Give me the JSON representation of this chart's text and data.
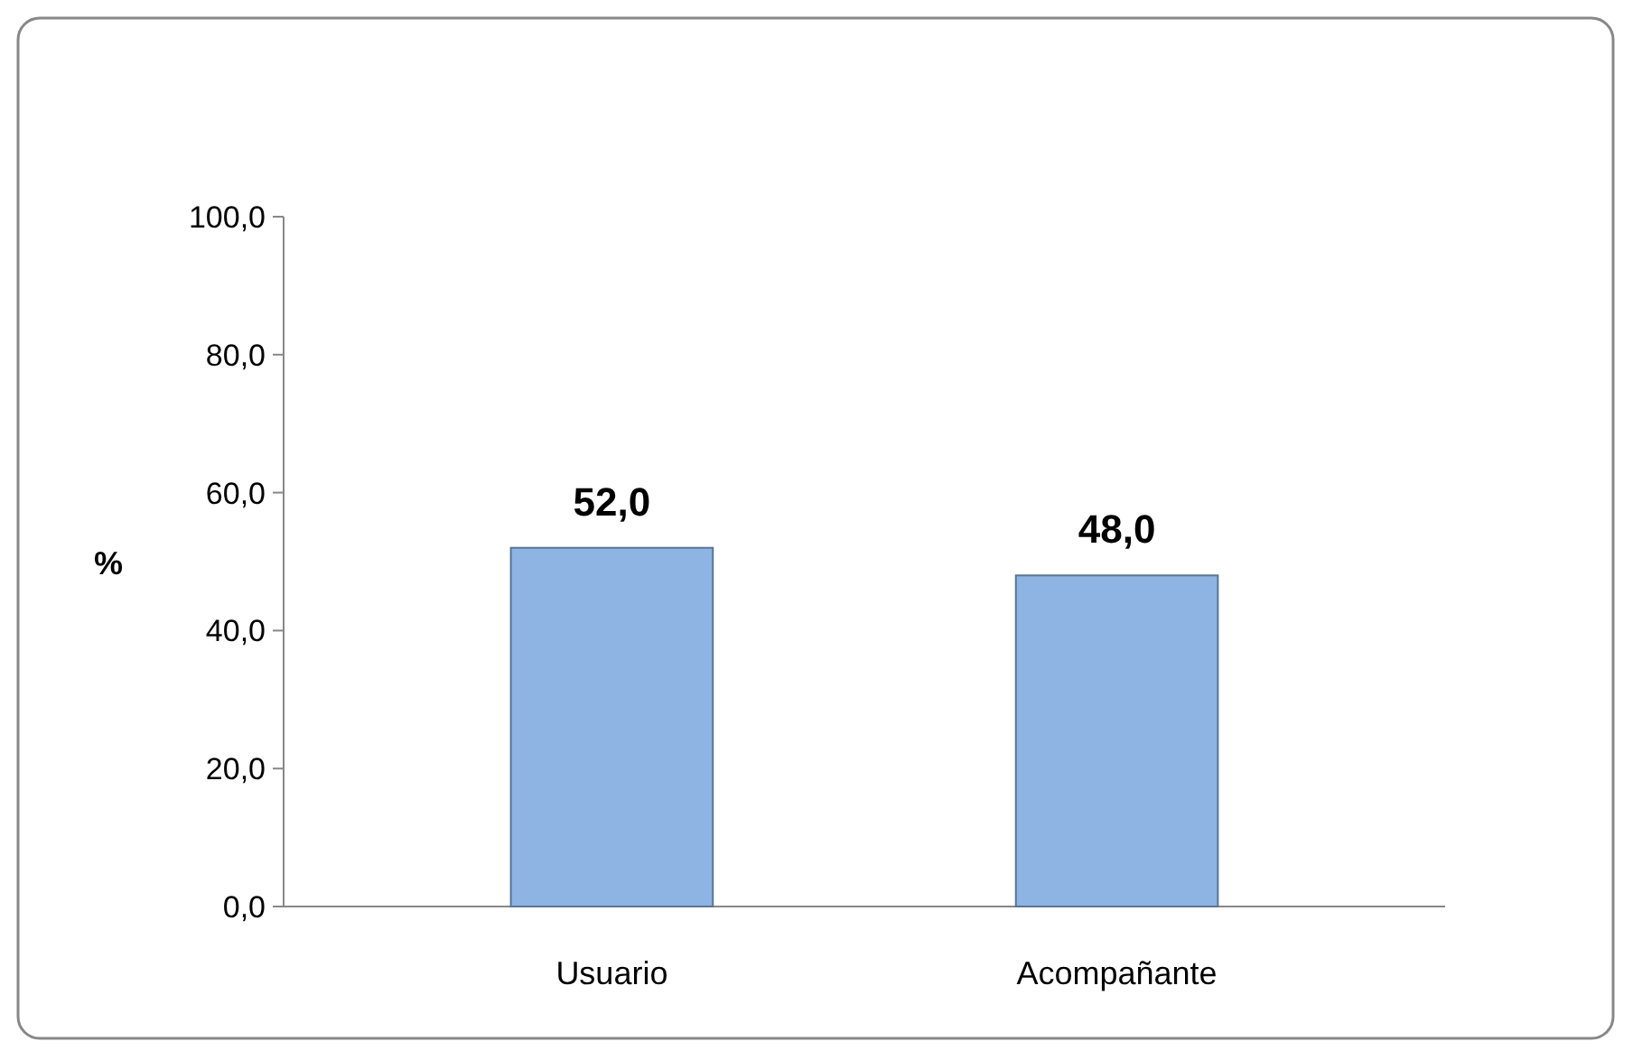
{
  "chart_data": {
    "type": "bar",
    "ylabel": "%",
    "categories": [
      "Usuario",
      "Acompañante"
    ],
    "values": [
      52,
      48
    ],
    "color": "#8db4e2",
    "value_labels": [
      "52,0",
      "48,0"
    ],
    "ylim": [
      0,
      100
    ],
    "yticks": [
      {
        "value": 0,
        "label": "0,0"
      },
      {
        "value": 20,
        "label": "20,0"
      },
      {
        "value": 40,
        "label": "40,0"
      },
      {
        "value": 60,
        "label": "60,0"
      },
      {
        "value": 80,
        "label": "80,0"
      },
      {
        "value": 100,
        "label": "100,0"
      }
    ],
    "grid": false
  }
}
